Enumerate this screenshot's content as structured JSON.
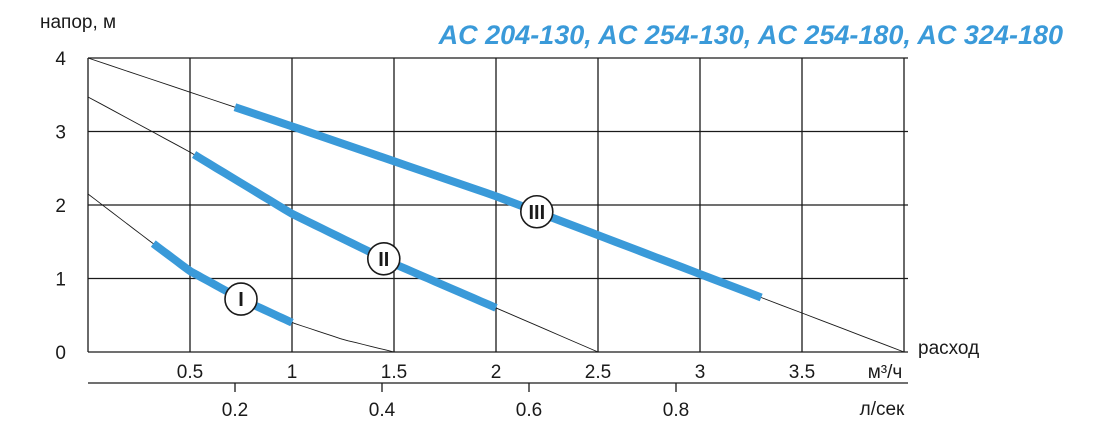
{
  "chart_data": {
    "type": "line",
    "title": "AC 204-130, AC 254-130, AC 254-180, AC 324-180",
    "ylabel": "напор, м",
    "xlabel": "расход",
    "x_unit": "м³/ч",
    "x2_unit": "л/сек",
    "xlim": [
      0,
      4
    ],
    "ylim": [
      0,
      4
    ],
    "x_ticks": [
      "0.5",
      "1",
      "1.5",
      "2",
      "2.5",
      "3",
      "3.5"
    ],
    "y_ticks": [
      "0",
      "1",
      "2",
      "3",
      "4"
    ],
    "x2_ticks": [
      {
        "label": "0.2",
        "value": 0.2
      },
      {
        "label": "0.4",
        "value": 0.4
      },
      {
        "label": "0.6",
        "value": 0.6
      },
      {
        "label": "0.8",
        "value": 0.8
      }
    ],
    "grid": true,
    "series": [
      {
        "name": "I",
        "x": [
          0,
          0.25,
          0.5,
          0.75,
          1.0,
          1.25,
          1.5
        ],
        "y": [
          2.15,
          1.62,
          1.1,
          0.72,
          0.4,
          0.17,
          0.0
        ],
        "highlight_x": [
          0.32,
          1.0
        ],
        "marker_x": 0.75
      },
      {
        "name": "II",
        "x": [
          0,
          0.5,
          1.0,
          1.5,
          2.0,
          2.5
        ],
        "y": [
          3.47,
          2.72,
          1.88,
          1.2,
          0.6,
          0.0
        ],
        "highlight_x": [
          0.52,
          2.0
        ],
        "marker_x": 1.45
      },
      {
        "name": "III",
        "x": [
          0,
          1.0,
          2.0,
          3.0,
          4.0
        ],
        "y": [
          4.0,
          3.07,
          2.12,
          1.06,
          0.0
        ],
        "highlight_x": [
          0.72,
          3.3
        ],
        "marker_x": 2.2
      }
    ]
  }
}
